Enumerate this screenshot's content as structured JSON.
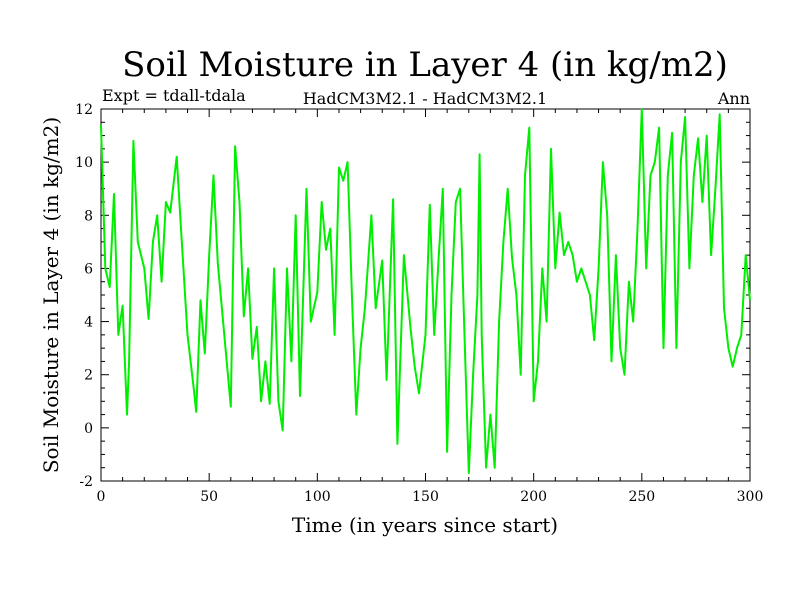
{
  "chart_data": {
    "type": "line",
    "title": "Soil Moisture in Layer 4 (in kg/m2)",
    "subtitle_left": "Expt = tdall-tdala",
    "subtitle_center": "HadCM3M2.1 - HadCM3M2.1",
    "subtitle_right": "Ann",
    "xlabel": "Time (in years since start)",
    "ylabel": "Soil Moisture in Layer 4 (in kg/m2)",
    "xlim": [
      0,
      300
    ],
    "ylim": [
      -2,
      12
    ],
    "xticks": [
      0,
      50,
      100,
      150,
      200,
      250,
      300
    ],
    "yticks": [
      -2,
      0,
      2,
      4,
      6,
      8,
      10,
      12
    ],
    "line_color": "#00ee00",
    "series": [
      {
        "name": "Soil Moisture Layer 4",
        "x": [
          0,
          2,
          4,
          6,
          8,
          10,
          12,
          13,
          15,
          17,
          20,
          22,
          24,
          26,
          28,
          30,
          32,
          35,
          37,
          40,
          43,
          44,
          46,
          48,
          50,
          52,
          54,
          57,
          60,
          62,
          64,
          66,
          68,
          70,
          72,
          74,
          76,
          78,
          80,
          82,
          84,
          86,
          88,
          90,
          92,
          95,
          97,
          100,
          102,
          104,
          106,
          108,
          110,
          112,
          114,
          116,
          118,
          120,
          122,
          125,
          127,
          130,
          132,
          135,
          137,
          140,
          143,
          145,
          147,
          150,
          152,
          154,
          156,
          158,
          160,
          162,
          164,
          166,
          168,
          170,
          172,
          174,
          175,
          176,
          178,
          180,
          182,
          184,
          186,
          188,
          190,
          192,
          194,
          196,
          198,
          200,
          202,
          204,
          206,
          208,
          210,
          212,
          214,
          216,
          218,
          220,
          222,
          224,
          226,
          228,
          230,
          232,
          234,
          236,
          238,
          240,
          242,
          244,
          246,
          248,
          250,
          252,
          254,
          256,
          258,
          260,
          262,
          264,
          266,
          268,
          270,
          272,
          274,
          276,
          278,
          280,
          282,
          284,
          286,
          288,
          290,
          292,
          294,
          296,
          298,
          300
        ],
        "y": [
          11.4,
          6,
          5.3,
          8.8,
          3.5,
          4.6,
          0.5,
          2.5,
          10.8,
          7,
          6,
          4.1,
          7,
          8,
          5.5,
          8.5,
          8.1,
          10.2,
          7.5,
          3.5,
          1.4,
          0.6,
          4.8,
          2.8,
          6.5,
          9.5,
          6.2,
          3.5,
          0.8,
          10.6,
          8.5,
          4.2,
          6,
          2.6,
          3.8,
          1,
          2.5,
          0.9,
          6,
          1,
          -0.1,
          6,
          2.5,
          8,
          1.2,
          9,
          4,
          5.1,
          8.5,
          6.7,
          7.5,
          3.5,
          9.8,
          9.3,
          10,
          5,
          0.5,
          3,
          4.5,
          8,
          4.5,
          6.3,
          1.8,
          8.6,
          -0.6,
          6.5,
          3.8,
          2.3,
          1.3,
          3.5,
          8.4,
          3.5,
          6.3,
          9,
          -0.9,
          5,
          8.5,
          9,
          3.6,
          -1.7,
          2,
          5,
          10.3,
          3.5,
          -1.5,
          0.5,
          -1.5,
          4,
          7,
          9,
          6.4,
          5,
          2,
          9.5,
          11.3,
          1,
          2.5,
          6,
          4,
          10.5,
          6,
          8.1,
          6.5,
          7,
          6.5,
          5.5,
          6,
          5.5,
          5,
          3.3,
          6,
          10,
          8,
          2.5,
          6.5,
          3,
          2,
          5.5,
          4,
          7.5,
          12,
          6,
          9.5,
          10,
          11.3,
          3,
          9.5,
          11.1,
          3,
          10,
          11.7,
          6,
          9.5,
          10.9,
          8.5,
          11,
          6.5,
          9,
          11.8,
          4.5,
          3,
          2.3,
          3,
          3.5,
          6.5,
          4.8
        ]
      }
    ]
  }
}
